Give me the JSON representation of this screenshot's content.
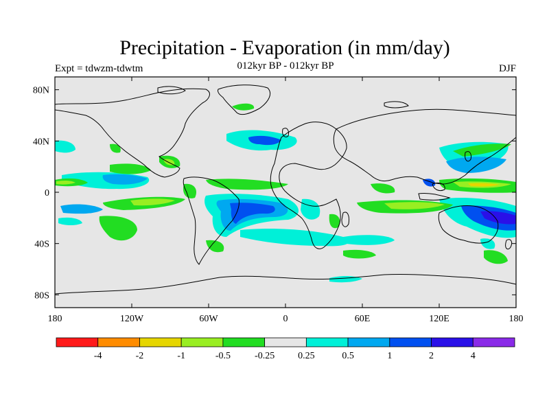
{
  "title": "Precipitation - Evaporation (in mm/day)",
  "subtitle": "012kyr BP - 012kyr BP",
  "left_label": "Expt = tdwzm-tdwtm",
  "right_label": "DJF",
  "chart_data": {
    "type": "heatmap",
    "title": "Precipitation - Evaporation (in mm/day)",
    "subtitle": "012kyr BP - 012kyr BP",
    "experiment": "Expt = tdwzm-tdwtm",
    "season": "DJF",
    "x_ticks": [
      "180",
      "120W",
      "60W",
      "0",
      "60E",
      "120E",
      "180"
    ],
    "y_ticks": [
      "80N",
      "40N",
      "0",
      "40S",
      "80S"
    ],
    "x_range": [
      -180,
      180
    ],
    "y_range": [
      -90,
      90
    ],
    "colorbar": {
      "labels": [
        "-4",
        "-2",
        "-1",
        "-0.5",
        "-0.25",
        "0.25",
        "0.5",
        "1",
        "2",
        "4"
      ],
      "colors": [
        "#ff1a1a",
        "#ff8c00",
        "#e6d600",
        "#99ee22",
        "#22dd22",
        "#e6e6e6",
        "#00f0d8",
        "#00a8f0",
        "#0050f0",
        "#2a10e8",
        "#8a2be8"
      ]
    },
    "background_color": "#e6e6e6"
  }
}
